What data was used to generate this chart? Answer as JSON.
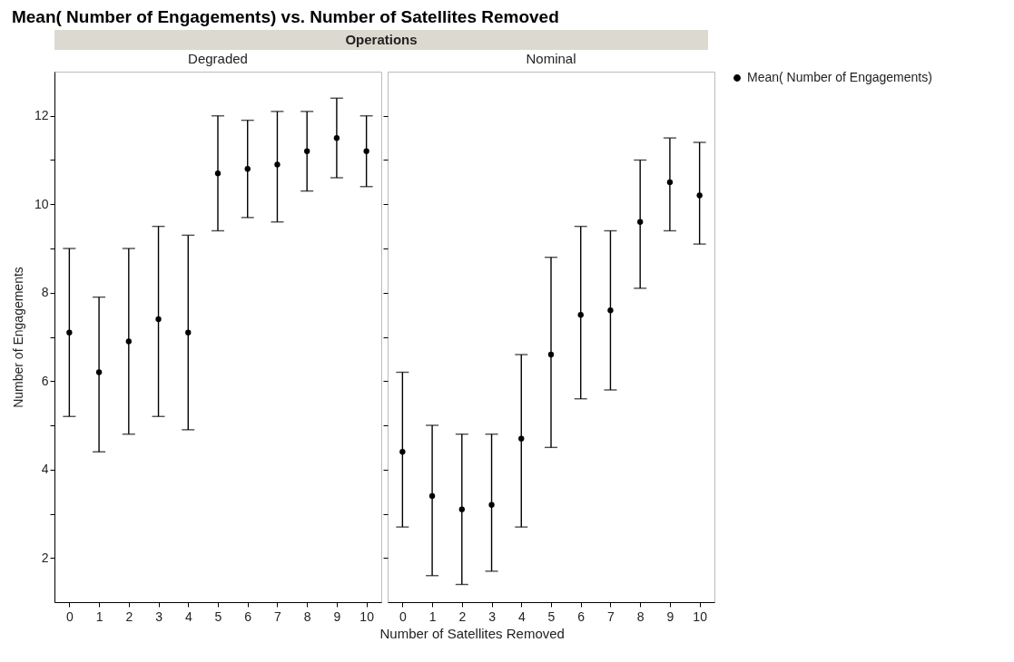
{
  "chart_data": [
    {
      "type": "scatter",
      "title": "Mean( Number of Engagements) vs. Number of Satellites Removed",
      "subtitle": "Operations",
      "annotations": [
        "Degraded"
      ],
      "xlabel": "Number of Satellites Removed",
      "ylabel": "Number of Engagements",
      "categories": [
        "0",
        "1",
        "2",
        "3",
        "4",
        "5",
        "6",
        "7",
        "8",
        "9",
        "10"
      ],
      "series": [
        {
          "color": "#000000",
          "values": [
            7.1,
            6.2,
            6.9,
            7.4,
            7.1,
            10.7,
            10.8,
            10.9,
            11.2,
            11.5,
            11.2
          ],
          "errors": [
            [
              5.2,
              9.0
            ],
            [
              4.4,
              7.9
            ],
            [
              4.8,
              9.0
            ],
            [
              5.2,
              9.5
            ],
            [
              4.9,
              9.3
            ],
            [
              9.4,
              12.0
            ],
            [
              9.7,
              11.9
            ],
            [
              9.6,
              12.1
            ],
            [
              10.3,
              12.1
            ],
            [
              10.6,
              12.4
            ],
            [
              10.4,
              12.0
            ]
          ]
        }
      ],
      "ylim": [
        1,
        13
      ],
      "yticks": [
        2,
        {
          "value": 3,
          "label": null
        },
        4,
        {
          "value": 5,
          "label": null
        },
        6,
        {
          "value": 7,
          "label": null
        },
        8,
        {
          "value": 9,
          "label": null
        },
        10,
        {
          "value": 11,
          "label": null
        },
        12
      ],
      "marker": "circle",
      "grid": false
    },
    {
      "type": "scatter",
      "annotations": [
        "Nominal"
      ],
      "categories": [
        "0",
        "1",
        "2",
        "3",
        "4",
        "5",
        "6",
        "7",
        "8",
        "9",
        "10"
      ],
      "series": [
        {
          "name": "Mean( Number of Engagements)",
          "color": "#000000",
          "values": [
            4.4,
            3.4,
            3.1,
            3.2,
            4.7,
            6.6,
            7.5,
            7.6,
            9.6,
            10.5,
            10.2
          ],
          "errors": [
            [
              2.7,
              6.2
            ],
            [
              1.6,
              5.0
            ],
            [
              1.4,
              4.8
            ],
            [
              1.7,
              4.8
            ],
            [
              2.7,
              6.6
            ],
            [
              4.5,
              8.8
            ],
            [
              5.6,
              9.5
            ],
            [
              5.8,
              9.4
            ],
            [
              8.1,
              11.0
            ],
            [
              9.4,
              11.5
            ],
            [
              9.1,
              11.4
            ]
          ]
        }
      ],
      "ylim": [
        1,
        13
      ],
      "yticks": [
        2,
        {
          "value": 3,
          "label": null
        },
        4,
        {
          "value": 5,
          "label": null
        },
        6,
        {
          "value": 7,
          "label": null
        },
        8,
        {
          "value": 9,
          "label": null
        },
        10,
        {
          "value": 11,
          "label": null
        },
        12
      ],
      "tick_labels": "x",
      "marker": "circle",
      "grid": false,
      "legend": "top right"
    }
  ]
}
